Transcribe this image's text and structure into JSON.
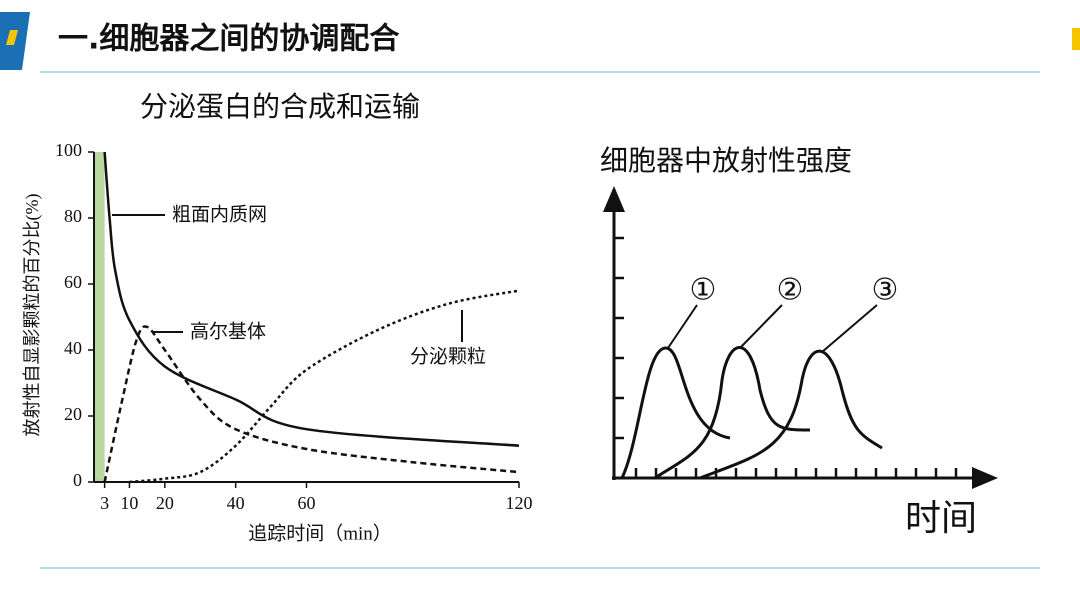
{
  "header": {
    "title": "一.细胞器之间的协调配合"
  },
  "chart_data": {
    "type": "line",
    "title": "分泌蛋白的合成和运输",
    "x_label": "追踪时间（min）",
    "y_label": "放射性自显影颗粒的百分比(%)",
    "xlim": [
      0,
      120
    ],
    "ylim": [
      0,
      100
    ],
    "xticks": [
      3,
      10,
      20,
      40,
      60,
      120
    ],
    "yticks": [
      0,
      20,
      40,
      60,
      80,
      100
    ],
    "shade": [
      0,
      3
    ],
    "shade_color": "#b9d7a0",
    "series": [
      {
        "name": "粗面内质网",
        "color": "#111111",
        "line_style": "solid",
        "x": [
          3,
          4.4,
          6,
          10,
          20,
          40,
          60,
          120
        ],
        "values": [
          100,
          80,
          64,
          49,
          35,
          25,
          16,
          11
        ]
      },
      {
        "name": "高尔基体",
        "color": "#111111",
        "line_style": "dashed",
        "x": [
          3,
          8,
          12,
          15,
          20,
          30,
          40,
          60,
          90,
          120
        ],
        "values": [
          0,
          25,
          43,
          47,
          40,
          25,
          16,
          10,
          6,
          3
        ]
      },
      {
        "name": "分泌颗粒",
        "color": "#111111",
        "line_style": "dotted",
        "x": [
          10,
          20,
          30,
          40,
          50,
          60,
          80,
          100,
          120
        ],
        "values": [
          0,
          1,
          3,
          11,
          23,
          34,
          46,
          54,
          58
        ]
      }
    ]
  },
  "diagram": {
    "y_label": "细胞器中放射性强度",
    "x_label": "时间",
    "peaks": [
      "①",
      "②",
      "③"
    ]
  }
}
